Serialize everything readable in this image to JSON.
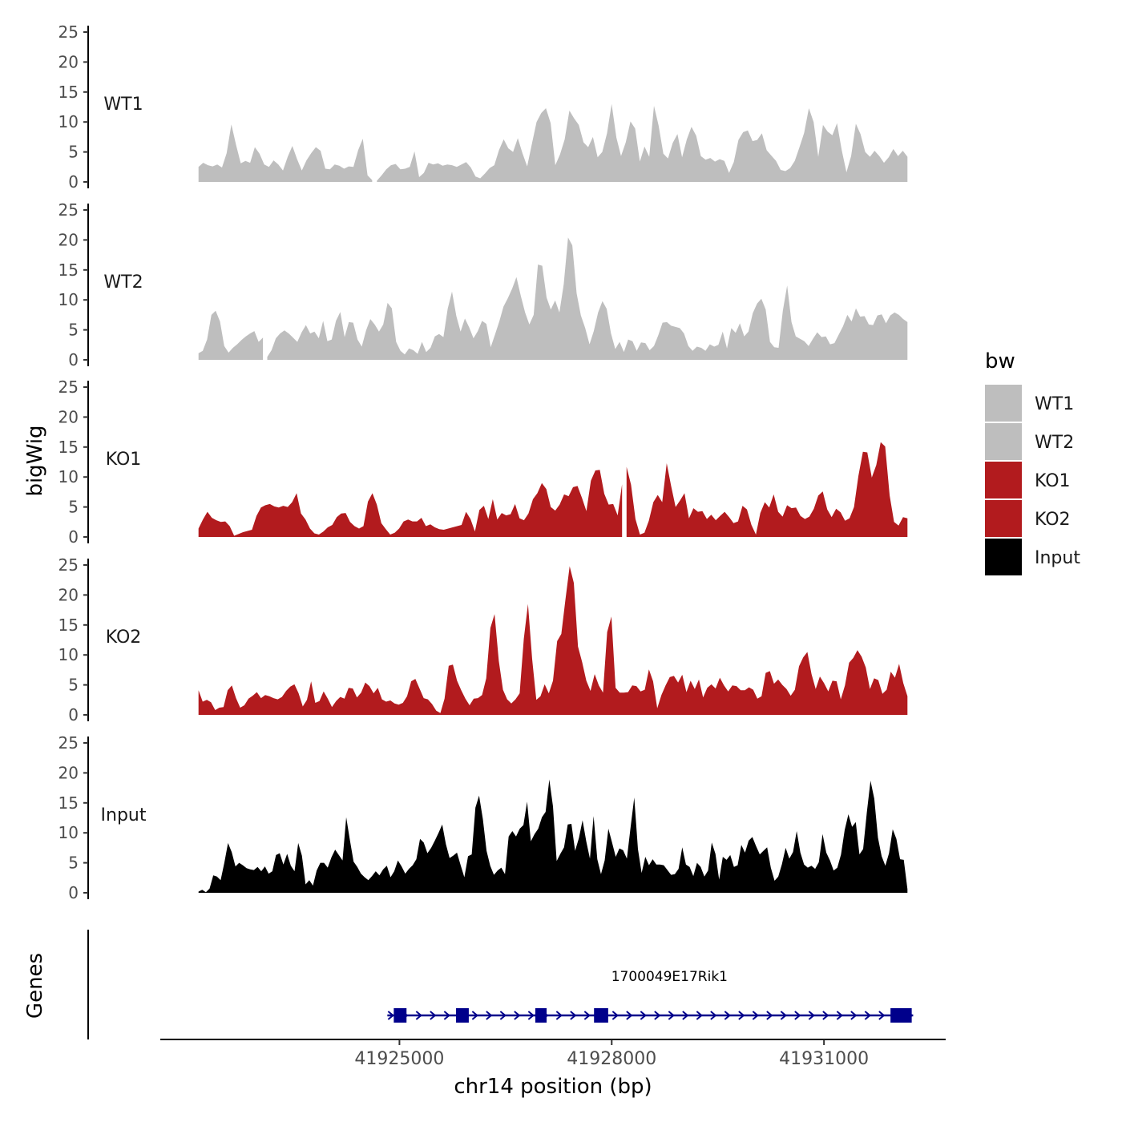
{
  "chart_data": {
    "type": "area",
    "title": "",
    "ylabel": "bigWig",
    "xlabel": "chr14 position (bp)",
    "genes_label": "Genes",
    "ylim": [
      0,
      25
    ],
    "yticks": [
      0,
      5,
      10,
      15,
      20,
      25
    ],
    "xlim": [
      41921620,
      41932720
    ],
    "xticks": [
      41925000,
      41928000,
      41931000
    ],
    "xtick_labels": [
      "41925000",
      "41928000",
      "41931000"
    ],
    "legend": {
      "title": "bw",
      "position": "right",
      "entries": [
        {
          "label": "WT1",
          "color": "#bebebe"
        },
        {
          "label": "WT2",
          "color": "#bebebe"
        },
        {
          "label": "KO1",
          "color": "#b21b1e"
        },
        {
          "label": "KO2",
          "color": "#b21b1e"
        },
        {
          "label": "Input",
          "color": "#000000"
        }
      ]
    },
    "track_range": [
      41922160,
      41932180
    ],
    "tracks": [
      {
        "name": "WT1",
        "color": "#bebebe",
        "gap_after_index": 37,
        "values": [
          2.5,
          3.2,
          2.8,
          2.6,
          2.9,
          2.4,
          4.8,
          9.6,
          6.2,
          3.1,
          3.5,
          3.2,
          5.8,
          4.7,
          2.9,
          2.5,
          3.6,
          2.9,
          1.9,
          4.2,
          6.0,
          3.8,
          1.9,
          3.6,
          4.8,
          5.8,
          5.2,
          2.2,
          2.1,
          2.9,
          2.7,
          2.2,
          2.6,
          2.5,
          5.3,
          7.2,
          1.1,
          0.3,
          0.2,
          1.1,
          2.1,
          2.8,
          3.0,
          2.1,
          2.2,
          2.5,
          5.1,
          0.8,
          1.5,
          3.2,
          2.9,
          3.1,
          2.7,
          2.9,
          2.8,
          2.5,
          2.9,
          3.3,
          2.4,
          0.9,
          0.6,
          1.4,
          2.3,
          2.8,
          5.3,
          7.1,
          5.6,
          5.0,
          7.3,
          4.8,
          2.6,
          6.3,
          10.0,
          11.5,
          12.3,
          9.8,
          2.8,
          4.6,
          7.1,
          11.9,
          10.6,
          9.5,
          6.6,
          5.8,
          7.5,
          4.1,
          5.0,
          8.1,
          13.0,
          7.4,
          4.3,
          6.6,
          10.1,
          8.9,
          3.4,
          5.9,
          4.2,
          12.7,
          9.4,
          4.7,
          3.9,
          6.5,
          8.0,
          4.1,
          7.1,
          9.2,
          7.7,
          4.3,
          3.7,
          4.0,
          3.4,
          3.8,
          3.5,
          1.5,
          3.3,
          7.0,
          8.3,
          8.6,
          6.8,
          7.0,
          8.1,
          5.3,
          4.4,
          3.5,
          2.0,
          1.8,
          2.3,
          3.5,
          5.8,
          8.2,
          12.3,
          10.0,
          4.2,
          9.5,
          8.4,
          7.8,
          9.8,
          5.3,
          1.6,
          4.3,
          9.7,
          8.0,
          5.0,
          4.2,
          5.2,
          4.3,
          3.2,
          4.1,
          5.5,
          4.3,
          5.2,
          4.2
        ]
      },
      {
        "name": "WT2",
        "color": "#bebebe",
        "gap_after_index": 15,
        "values": [
          1.1,
          1.5,
          3.4,
          7.5,
          8.2,
          6.4,
          2.3,
          1.2,
          2.0,
          2.6,
          3.3,
          3.9,
          4.4,
          4.8,
          3.0,
          3.7,
          0.5,
          1.6,
          3.6,
          4.4,
          4.9,
          4.4,
          3.7,
          3.0,
          4.6,
          5.8,
          4.4,
          4.7,
          3.6,
          6.5,
          3.1,
          3.4,
          6.5,
          8.0,
          3.8,
          6.3,
          6.2,
          3.4,
          2.2,
          4.9,
          6.8,
          5.9,
          4.7,
          5.9,
          9.5,
          8.6,
          3.0,
          1.5,
          0.9,
          1.9,
          1.6,
          1.0,
          3.0,
          1.3,
          2.0,
          3.9,
          4.3,
          3.8,
          8.5,
          11.4,
          7.3,
          4.7,
          6.9,
          5.4,
          3.6,
          4.8,
          6.5,
          6.0,
          2.1,
          4.2,
          6.4,
          8.9,
          10.3,
          11.9,
          13.8,
          10.7,
          7.9,
          5.9,
          7.5,
          15.9,
          15.7,
          10.4,
          8.4,
          9.9,
          7.9,
          12.6,
          20.4,
          19.1,
          11.1,
          7.4,
          5.3,
          2.6,
          4.8,
          7.9,
          9.8,
          8.5,
          4.4,
          1.8,
          3.0,
          1.3,
          3.4,
          3.1,
          1.5,
          2.9,
          2.8,
          1.6,
          2.3,
          4.1,
          6.2,
          6.3,
          5.7,
          5.5,
          5.3,
          4.4,
          2.3,
          1.5,
          2.2,
          2.0,
          1.5,
          2.6,
          2.2,
          2.5,
          4.7,
          1.9,
          5.3,
          4.5,
          6.1,
          3.9,
          4.7,
          7.8,
          9.4,
          10.2,
          8.4,
          3.0,
          2.1,
          2.0,
          8.2,
          12.4,
          6.3,
          3.9,
          3.5,
          3.1,
          2.3,
          3.5,
          4.6,
          3.8,
          3.9,
          2.6,
          2.8,
          4.2,
          5.6,
          7.5,
          6.4,
          8.6,
          7.2,
          7.3,
          5.9,
          5.8,
          7.4,
          7.6,
          6.1,
          7.4,
          7.9,
          7.5,
          6.8,
          6.3
        ]
      },
      {
        "name": "KO1",
        "color": "#b21b1e",
        "gap_after_index": 95,
        "values": [
          1.4,
          2.9,
          4.2,
          3.2,
          2.8,
          2.5,
          2.6,
          1.8,
          0.2,
          0.5,
          0.8,
          1.0,
          1.2,
          3.5,
          4.9,
          5.3,
          5.5,
          5.1,
          4.9,
          5.2,
          5.0,
          5.8,
          7.3,
          3.9,
          2.9,
          1.4,
          0.6,
          0.4,
          0.9,
          1.6,
          2.0,
          3.3,
          3.9,
          4.0,
          2.5,
          1.8,
          1.4,
          1.8,
          5.9,
          7.3,
          5.4,
          2.3,
          1.3,
          0.4,
          0.7,
          1.4,
          2.6,
          2.9,
          2.6,
          2.6,
          3.2,
          1.8,
          2.1,
          1.6,
          1.3,
          1.2,
          1.4,
          1.6,
          1.8,
          2.0,
          4.2,
          3.0,
          0.9,
          4.5,
          5.2,
          3.0,
          6.3,
          2.9,
          4.0,
          3.6,
          3.8,
          5.5,
          3.1,
          2.8,
          3.9,
          6.3,
          7.3,
          9.0,
          8.0,
          5.0,
          4.4,
          5.4,
          7.1,
          6.8,
          8.3,
          8.5,
          6.5,
          4.3,
          9.4,
          11.1,
          11.2,
          7.2,
          5.4,
          5.5,
          3.6,
          8.8,
          11.7,
          8.7,
          3.0,
          0.4,
          0.7,
          2.7,
          5.8,
          7.0,
          5.8,
          12.3,
          8.5,
          5.0,
          6.1,
          7.3,
          3.1,
          4.8,
          4.2,
          4.3,
          3.0,
          3.7,
          2.8,
          3.5,
          4.2,
          3.3,
          2.3,
          2.6,
          5.2,
          4.6,
          2.0,
          0.4,
          4.0,
          5.8,
          4.9,
          7.1,
          4.2,
          3.4,
          5.3,
          4.8,
          4.9,
          3.5,
          3.0,
          3.4,
          4.7,
          6.9,
          7.6,
          4.6,
          3.3,
          4.7,
          4.1,
          2.7,
          3.1,
          5.0,
          10.2,
          14.2,
          14.1,
          9.9,
          12.0,
          15.8,
          15.1,
          6.9,
          2.5,
          1.9,
          3.3,
          3.1
        ]
      },
      {
        "name": "KO2",
        "color": "#b21b1e",
        "gap_after_index": null,
        "values": [
          4.1,
          2.2,
          2.5,
          2.1,
          0.8,
          1.2,
          1.3,
          4.1,
          4.9,
          2.8,
          1.2,
          1.6,
          2.7,
          3.2,
          3.8,
          2.8,
          3.3,
          3.1,
          2.8,
          2.6,
          3.0,
          4.0,
          4.7,
          5.1,
          3.6,
          1.4,
          2.5,
          5.6,
          2.0,
          2.3,
          3.9,
          2.7,
          1.3,
          2.3,
          3.0,
          2.7,
          4.5,
          4.4,
          2.9,
          3.7,
          5.4,
          4.8,
          3.6,
          4.5,
          2.6,
          2.2,
          2.4,
          1.9,
          1.7,
          2.0,
          3.1,
          5.6,
          6.0,
          4.4,
          2.8,
          2.6,
          1.8,
          0.7,
          0.3,
          2.7,
          8.2,
          8.4,
          5.7,
          4.1,
          2.7,
          1.6,
          2.7,
          2.8,
          3.3,
          6.1,
          14.5,
          16.8,
          9.0,
          4.2,
          2.6,
          1.9,
          2.6,
          3.6,
          12.7,
          18.5,
          9.3,
          2.5,
          3.1,
          5.1,
          3.6,
          5.7,
          12.3,
          13.5,
          19.3,
          24.8,
          22.0,
          11.4,
          8.8,
          5.7,
          4.0,
          6.8,
          4.9,
          3.7,
          13.8,
          16.4,
          4.5,
          3.7,
          3.7,
          3.8,
          4.9,
          4.8,
          3.9,
          4.2,
          7.6,
          5.6,
          1.1,
          3.3,
          4.9,
          6.3,
          6.5,
          5.4,
          6.7,
          3.8,
          5.7,
          4.3,
          5.9,
          2.9,
          4.5,
          5.1,
          4.4,
          6.2,
          4.9,
          3.9,
          4.9,
          4.8,
          4.1,
          4.1,
          4.6,
          4.2,
          2.7,
          3.1,
          7.0,
          7.3,
          5.2,
          5.9,
          5.0,
          4.3,
          3.2,
          4.2,
          8.1,
          9.6,
          10.5,
          6.8,
          4.3,
          6.4,
          5.3,
          3.9,
          5.7,
          5.6,
          2.6,
          4.9,
          8.7,
          9.5,
          10.8,
          9.7,
          7.9,
          4.3,
          6.1,
          5.8,
          3.5,
          4.2,
          7.2,
          6.2,
          8.5,
          5.3,
          3.1
        ]
      },
      {
        "name": "Input",
        "color": "#000000",
        "gap_after_index": null,
        "values": [
          0.2,
          0.5,
          0.1,
          0.7,
          2.9,
          2.7,
          2.1,
          5.0,
          8.3,
          6.8,
          4.4,
          5.0,
          4.6,
          4.1,
          3.9,
          3.8,
          4.3,
          3.6,
          4.4,
          3.2,
          3.6,
          6.3,
          6.6,
          4.7,
          6.5,
          4.5,
          3.6,
          8.3,
          6.2,
          1.4,
          2.1,
          1.2,
          3.7,
          5.0,
          5.0,
          4.2,
          5.9,
          7.2,
          6.3,
          5.4,
          12.6,
          8.8,
          5.2,
          4.3,
          3.2,
          2.6,
          2.1,
          2.8,
          3.6,
          2.9,
          3.9,
          4.5,
          2.6,
          3.6,
          5.4,
          4.4,
          3.2,
          4.0,
          4.6,
          5.6,
          9.0,
          8.4,
          6.6,
          7.5,
          8.7,
          10.0,
          11.4,
          8.1,
          5.8,
          6.2,
          6.7,
          4.6,
          2.6,
          6.1,
          6.4,
          14.2,
          16.2,
          12.3,
          7.0,
          4.5,
          3.0,
          3.7,
          4.2,
          3.1,
          9.4,
          10.3,
          9.4,
          10.7,
          11.3,
          15.2,
          8.6,
          9.8,
          10.7,
          12.6,
          13.5,
          18.9,
          14.4,
          5.3,
          6.5,
          7.6,
          11.4,
          11.5,
          7.0,
          9.1,
          12.1,
          8.6,
          5.7,
          12.8,
          5.6,
          3.1,
          5.4,
          10.7,
          8.4,
          6.0,
          7.4,
          7.1,
          5.7,
          10.9,
          15.9,
          7.3,
          3.3,
          6.0,
          4.6,
          5.6,
          4.7,
          4.7,
          4.6,
          3.8,
          3.0,
          3.1,
          4.0,
          7.6,
          4.7,
          4.3,
          2.8,
          5.0,
          4.3,
          2.7,
          3.7,
          8.4,
          6.5,
          2.2,
          6.0,
          5.5,
          6.3,
          4.3,
          4.6,
          8.0,
          6.7,
          8.7,
          9.3,
          7.8,
          6.4,
          7.0,
          7.6,
          4.2,
          2.0,
          2.7,
          4.8,
          7.5,
          5.7,
          6.8,
          10.3,
          6.7,
          4.7,
          4.2,
          4.5,
          4.0,
          5.1,
          9.8,
          6.7,
          5.4,
          3.7,
          4.2,
          6.4,
          10.5,
          13.1,
          11.0,
          11.8,
          6.4,
          7.3,
          13.4,
          18.7,
          15.7,
          9.2,
          6.1,
          4.5,
          6.6,
          10.6,
          9.0,
          5.6,
          5.5,
          0.6
        ]
      }
    ],
    "gene": {
      "label": "1700049E17Rik1",
      "start": 41924920,
      "end": 41932260,
      "color": "#00008b",
      "exons": [
        [
          41924920,
          41925100
        ],
        [
          41925800,
          41925980
        ],
        [
          41926920,
          41927080
        ],
        [
          41927750,
          41927950
        ],
        [
          41931940,
          41932240
        ]
      ]
    }
  }
}
